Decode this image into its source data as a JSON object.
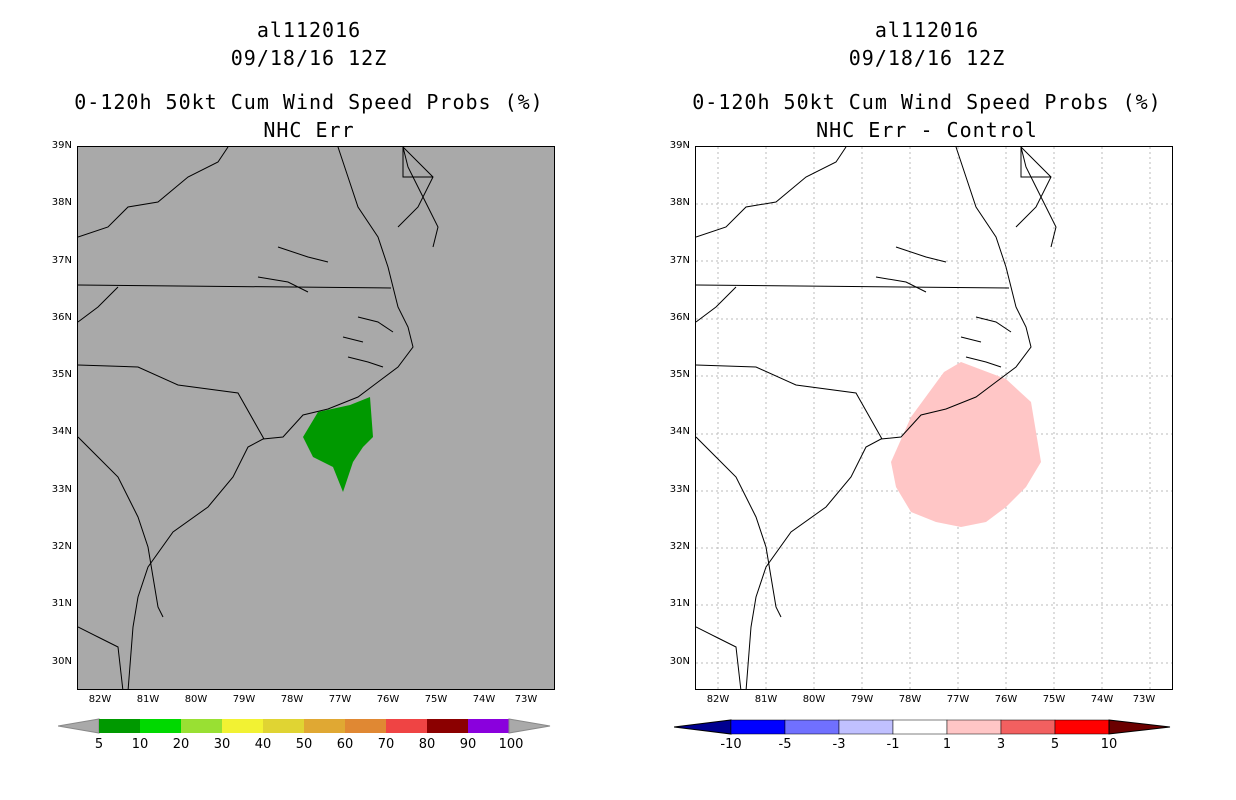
{
  "panels": [
    {
      "id": "left",
      "title_line1": "al112016",
      "title_line2": "09/18/16 12Z",
      "title_line3": "0-120h 50kt Cum Wind Speed Probs (%)",
      "title_line4": "NHC Err",
      "background": "#a9a9a9",
      "colorbar": {
        "labels": [
          "5",
          "10",
          "20",
          "30",
          "40",
          "50",
          "60",
          "70",
          "80",
          "90",
          "100"
        ],
        "colors": [
          "#009900",
          "#00d900",
          "#99e033",
          "#f2f233",
          "#e0d433",
          "#e0a833",
          "#e08833",
          "#ef4444",
          "#8b0000",
          "#8a00dd"
        ],
        "end_color": "#a9a9a9"
      },
      "region_color": "#009900"
    },
    {
      "id": "right",
      "title_line1": "al112016",
      "title_line2": "09/18/16 12Z",
      "title_line3": "0-120h 50kt Cum Wind Speed Probs (%)",
      "title_line4": "NHC Err - Control",
      "background": "#ffffff",
      "colorbar": {
        "labels": [
          "-10",
          "-5",
          "-3",
          "-1",
          "1",
          "3",
          "5",
          "10"
        ],
        "colors": [
          "#0000ff",
          "#7070ff",
          "#c0c0ff",
          "#ffffff",
          "#ffc6c6",
          "#f26060",
          "#ff0000"
        ],
        "low_end": "#000090",
        "high_end": "#6b0000"
      },
      "region_color": "#ffc6c6"
    }
  ],
  "lat_labels": [
    "39N",
    "38N",
    "37N",
    "36N",
    "35N",
    "34N",
    "33N",
    "32N",
    "31N",
    "30N"
  ],
  "lon_labels": [
    "82W",
    "81W",
    "80W",
    "79W",
    "78W",
    "77W",
    "76W",
    "75W",
    "74W",
    "73W"
  ]
}
